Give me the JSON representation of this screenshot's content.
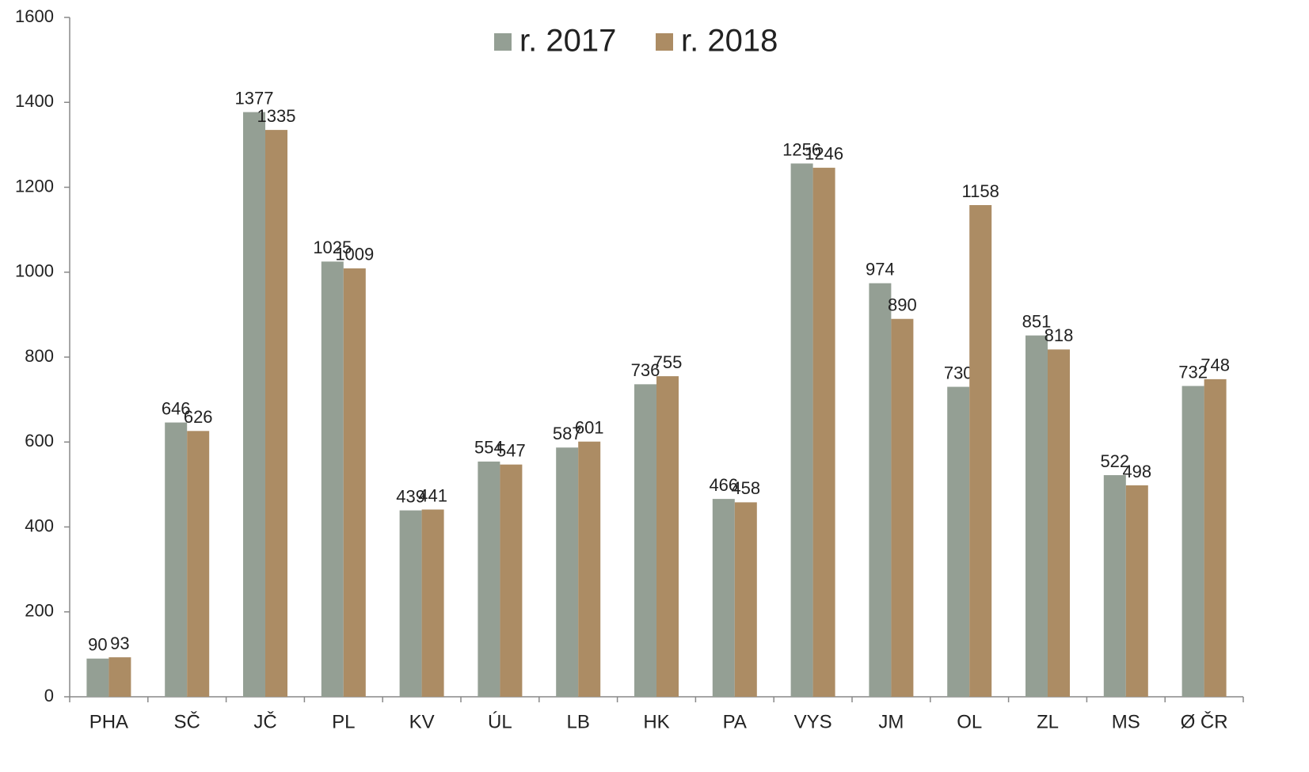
{
  "chart_data": {
    "type": "bar",
    "categories": [
      "PHA",
      "SČ",
      "JČ",
      "PL",
      "KV",
      "ÚL",
      "LB",
      "HK",
      "PA",
      "VYS",
      "JM",
      "OL",
      "ZL",
      "MS",
      "Ø ČR"
    ],
    "series": [
      {
        "name": "r. 2017",
        "color": "#949f94",
        "values": [
          90,
          646,
          1377,
          1025,
          439,
          554,
          587,
          736,
          466,
          1256,
          974,
          730,
          851,
          522,
          732
        ]
      },
      {
        "name": "r. 2018",
        "color": "#ac8c64",
        "values": [
          93,
          626,
          1335,
          1009,
          441,
          547,
          601,
          755,
          458,
          1246,
          890,
          1158,
          818,
          498,
          748
        ]
      }
    ],
    "ylim": [
      0,
      1600
    ],
    "yticks": [
      0,
      200,
      400,
      600,
      800,
      1000,
      1200,
      1400,
      1600
    ],
    "legend": "top"
  }
}
